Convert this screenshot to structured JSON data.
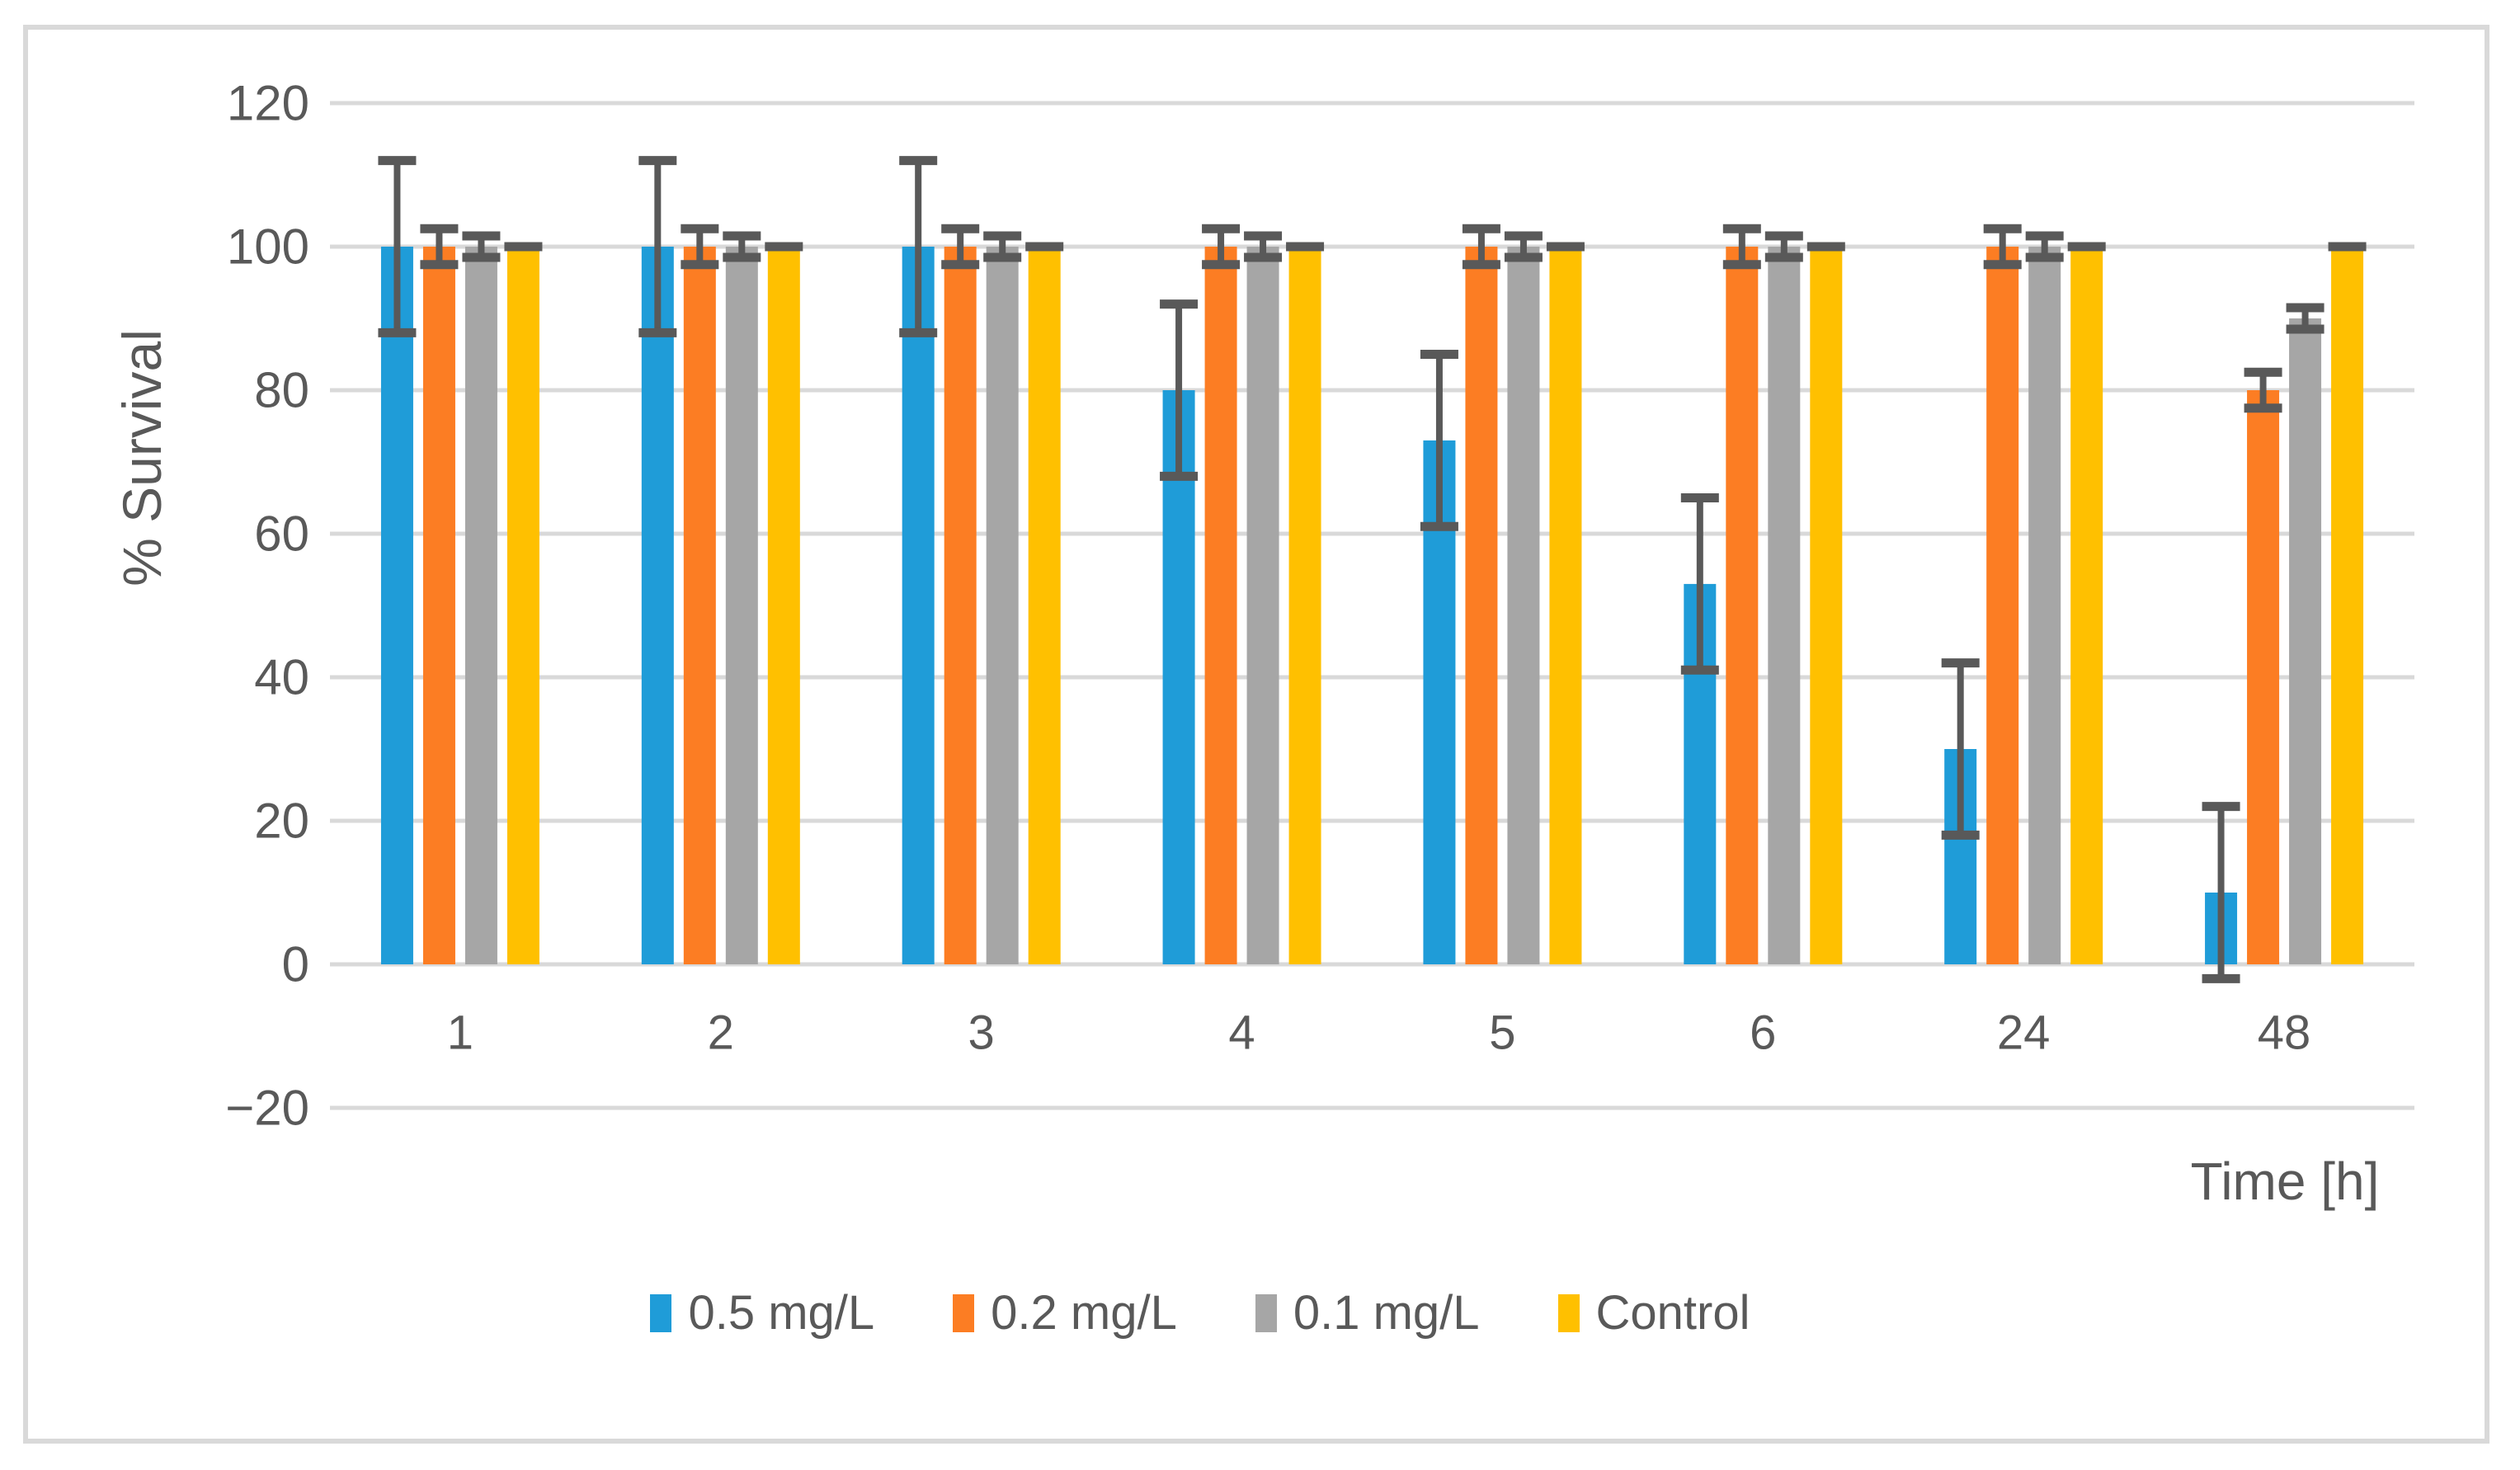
{
  "chart_data": {
    "type": "bar",
    "title": "",
    "xlabel": "Time [h]",
    "ylabel": "% Survival",
    "categories": [
      "1",
      "2",
      "3",
      "4",
      "5",
      "6",
      "24",
      "48"
    ],
    "yticks": [
      -20,
      0,
      20,
      40,
      60,
      80,
      100,
      120
    ],
    "ylim": [
      -20,
      120
    ],
    "grid": true,
    "legend_position": "bottom-center",
    "series": [
      {
        "name": "0.5 mg/L",
        "color": "#1F9CD8",
        "values": [
          100,
          100,
          100,
          80,
          73,
          53,
          30,
          10
        ],
        "errors": [
          12,
          12,
          12,
          12,
          12,
          12,
          12,
          12
        ]
      },
      {
        "name": "0.2 mg/L",
        "color": "#FC7D23",
        "values": [
          100,
          100,
          100,
          100,
          100,
          100,
          100,
          80
        ],
        "errors": [
          2.5,
          2.5,
          2.5,
          2.5,
          2.5,
          2.5,
          2.5,
          2.5
        ]
      },
      {
        "name": "0.1 mg/L",
        "color": "#A6A6A6",
        "values": [
          100,
          100,
          100,
          100,
          100,
          100,
          100,
          90
        ],
        "errors": [
          1.5,
          1.5,
          1.5,
          1.5,
          1.5,
          1.5,
          1.5,
          1.5
        ]
      },
      {
        "name": "Control",
        "color": "#FFC000",
        "values": [
          100,
          100,
          100,
          100,
          100,
          100,
          100,
          100
        ],
        "errors": [
          0,
          0,
          0,
          0,
          0,
          0,
          0,
          0
        ]
      }
    ]
  },
  "styles": {
    "text_color": "#595959",
    "gridline_color": "#D9D9D9",
    "error_bar_color": "#595959",
    "border_color": "#D9D9D9",
    "background": "#FFFFFF"
  }
}
